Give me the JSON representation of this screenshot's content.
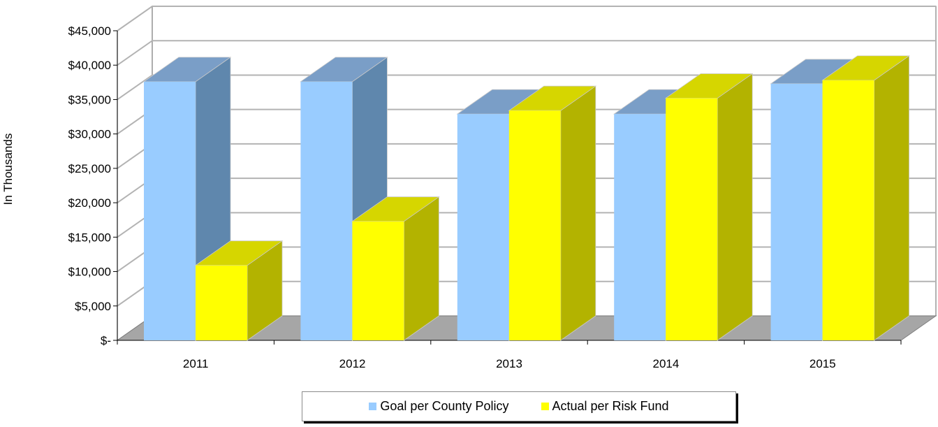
{
  "chart_data": {
    "type": "bar",
    "three_d": true,
    "categories": [
      "2011",
      "2012",
      "2013",
      "2014",
      "2015"
    ],
    "series": [
      {
        "name": "Goal per County Policy",
        "values": [
          37600,
          37600,
          32900,
          32900,
          37300
        ],
        "color": "#99ccff"
      },
      {
        "name": "Actual per Risk Fund",
        "values": [
          10900,
          17300,
          33400,
          35200,
          37800
        ],
        "color": "#ffff00"
      }
    ],
    "ylabel": "In Thousands",
    "xlabel": "",
    "ylim": [
      0,
      45000
    ],
    "yticks": [
      "$-",
      "$5,000",
      "$10,000",
      "$15,000",
      "$20,000",
      "$25,000",
      "$30,000",
      "$35,000",
      "$40,000",
      "$45,000"
    ],
    "grid": true,
    "legend_position": "bottom"
  },
  "legend": {
    "items": [
      {
        "label": "Goal per County Policy",
        "color": "#99ccff"
      },
      {
        "label": "Actual per Risk Fund",
        "color": "#ffff00"
      }
    ]
  }
}
